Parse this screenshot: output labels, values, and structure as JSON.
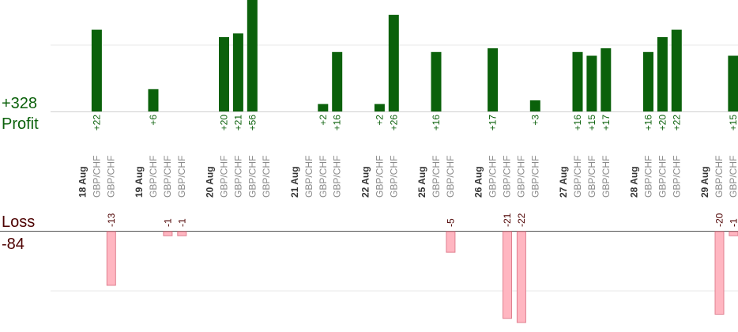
{
  "chart_data": {
    "type": "bar",
    "profit": {
      "total_label": "+328",
      "label": "Profit",
      "color": "#0b610b",
      "label_color": "#0b610b",
      "clip_value": 30,
      "scale_max": 30,
      "bars": [
        {
          "slot": 1,
          "value": 22,
          "label": "+22"
        },
        {
          "slot": 5,
          "value": 6,
          "label": "+6"
        },
        {
          "slot": 10,
          "value": 20,
          "label": "+20"
        },
        {
          "slot": 11,
          "value": 21,
          "label": "+21"
        },
        {
          "slot": 12,
          "value": 56,
          "label": "+56"
        },
        {
          "slot": 17,
          "value": 2,
          "label": "+2"
        },
        {
          "slot": 18,
          "value": 16,
          "label": "+16"
        },
        {
          "slot": 21,
          "value": 2,
          "label": "+2"
        },
        {
          "slot": 22,
          "value": 26,
          "label": "+26"
        },
        {
          "slot": 25,
          "value": 16,
          "label": "+16"
        },
        {
          "slot": 29,
          "value": 17,
          "label": "+17"
        },
        {
          "slot": 32,
          "value": 3,
          "label": "+3"
        },
        {
          "slot": 35,
          "value": 16,
          "label": "+16"
        },
        {
          "slot": 36,
          "value": 15,
          "label": "+15"
        },
        {
          "slot": 37,
          "value": 17,
          "label": "+17"
        },
        {
          "slot": 40,
          "value": 16,
          "label": "+16"
        },
        {
          "slot": 41,
          "value": 20,
          "label": "+20"
        },
        {
          "slot": 42,
          "value": 22,
          "label": "+22"
        },
        {
          "slot": 46,
          "value": 15,
          "label": "+15"
        }
      ]
    },
    "loss": {
      "total_label": "-84",
      "label": "Loss",
      "color": "#ffb6c1",
      "border_color": "#e08090",
      "label_color": "#4d0000",
      "scale_max": 22,
      "bars": [
        {
          "slot": 2,
          "value": -13,
          "label": "-13"
        },
        {
          "slot": 6,
          "value": -1,
          "label": "-1"
        },
        {
          "slot": 7,
          "value": -1,
          "label": "-1"
        },
        {
          "slot": 26,
          "value": -5,
          "label": "-5"
        },
        {
          "slot": 30,
          "value": -21,
          "label": "-21"
        },
        {
          "slot": 31,
          "value": -22,
          "label": "-22"
        },
        {
          "slot": 45,
          "value": -20,
          "label": "-20"
        },
        {
          "slot": 46,
          "value": -1,
          "label": "-1"
        }
      ]
    },
    "categories": [
      {
        "slot": 0,
        "label": "18 Aug",
        "kind": "date"
      },
      {
        "slot": 1,
        "label": "GBP/CHF",
        "kind": "pair"
      },
      {
        "slot": 2,
        "label": "GBP/CHF",
        "kind": "pair"
      },
      {
        "slot": 4,
        "label": "19 Aug",
        "kind": "date"
      },
      {
        "slot": 5,
        "label": "GBP/CHF",
        "kind": "pair"
      },
      {
        "slot": 6,
        "label": "GBP/CHF",
        "kind": "pair"
      },
      {
        "slot": 7,
        "label": "GBP/CHF",
        "kind": "pair"
      },
      {
        "slot": 9,
        "label": "20 Aug",
        "kind": "date"
      },
      {
        "slot": 10,
        "label": "GBP/CHF",
        "kind": "pair"
      },
      {
        "slot": 11,
        "label": "GBP/CHF",
        "kind": "pair"
      },
      {
        "slot": 12,
        "label": "GBP/CHF",
        "kind": "pair"
      },
      {
        "slot": 13,
        "label": "GBP/CHF",
        "kind": "pair"
      },
      {
        "slot": 15,
        "label": "21 Aug",
        "kind": "date"
      },
      {
        "slot": 16,
        "label": "GBP/CHF",
        "kind": "pair"
      },
      {
        "slot": 17,
        "label": "GBP/CHF",
        "kind": "pair"
      },
      {
        "slot": 18,
        "label": "GBP/CHF",
        "kind": "pair"
      },
      {
        "slot": 20,
        "label": "22 Aug",
        "kind": "date"
      },
      {
        "slot": 21,
        "label": "GBP/CHF",
        "kind": "pair"
      },
      {
        "slot": 22,
        "label": "GBP/CHF",
        "kind": "pair"
      },
      {
        "slot": 24,
        "label": "25 Aug",
        "kind": "date"
      },
      {
        "slot": 25,
        "label": "GBP/CHF",
        "kind": "pair"
      },
      {
        "slot": 26,
        "label": "GBP/CHF",
        "kind": "pair"
      },
      {
        "slot": 28,
        "label": "26 Aug",
        "kind": "date"
      },
      {
        "slot": 29,
        "label": "GBP/CHF",
        "kind": "pair"
      },
      {
        "slot": 30,
        "label": "GBP/CHF",
        "kind": "pair"
      },
      {
        "slot": 31,
        "label": "GBP/CHF",
        "kind": "pair"
      },
      {
        "slot": 32,
        "label": "GBP/CHF",
        "kind": "pair"
      },
      {
        "slot": 34,
        "label": "27 Aug",
        "kind": "date"
      },
      {
        "slot": 35,
        "label": "GBP/CHF",
        "kind": "pair"
      },
      {
        "slot": 36,
        "label": "GBP/CHF",
        "kind": "pair"
      },
      {
        "slot": 37,
        "label": "GBP/CHF",
        "kind": "pair"
      },
      {
        "slot": 39,
        "label": "28 Aug",
        "kind": "date"
      },
      {
        "slot": 40,
        "label": "GBP/CHF",
        "kind": "pair"
      },
      {
        "slot": 41,
        "label": "GBP/CHF",
        "kind": "pair"
      },
      {
        "slot": 42,
        "label": "GBP/CHF",
        "kind": "pair"
      },
      {
        "slot": 44,
        "label": "29 Aug",
        "kind": "date"
      },
      {
        "slot": 45,
        "label": "GBP/CHF",
        "kind": "pair"
      },
      {
        "slot": 46,
        "label": "GBP/CHF",
        "kind": "pair"
      },
      {
        "slot": 47,
        "label": "GBP/CHF",
        "kind": "pair"
      }
    ],
    "grid": true,
    "legend": "none"
  }
}
